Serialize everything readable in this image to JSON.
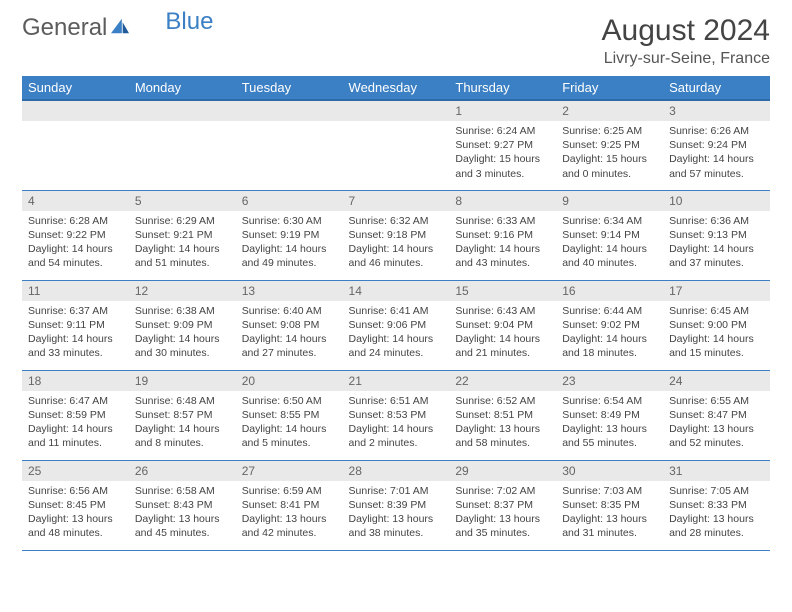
{
  "logo": {
    "text1": "General",
    "text2": "Blue"
  },
  "title": {
    "month": "August 2024",
    "location": "Livry-sur-Seine, France"
  },
  "theme": {
    "header_bg": "#3b7fc4",
    "header_text": "#ffffff",
    "daynum_bg": "#e9e9e9",
    "daynum_text": "#666666",
    "body_text": "#444444",
    "row_border": "#3b7fc4",
    "page_bg": "#ffffff"
  },
  "day_headers": [
    "Sunday",
    "Monday",
    "Tuesday",
    "Wednesday",
    "Thursday",
    "Friday",
    "Saturday"
  ],
  "weeks": [
    [
      null,
      null,
      null,
      null,
      {
        "n": "1",
        "sunrise": "Sunrise: 6:24 AM",
        "sunset": "Sunset: 9:27 PM",
        "daylight": "Daylight: 15 hours and 3 minutes."
      },
      {
        "n": "2",
        "sunrise": "Sunrise: 6:25 AM",
        "sunset": "Sunset: 9:25 PM",
        "daylight": "Daylight: 15 hours and 0 minutes."
      },
      {
        "n": "3",
        "sunrise": "Sunrise: 6:26 AM",
        "sunset": "Sunset: 9:24 PM",
        "daylight": "Daylight: 14 hours and 57 minutes."
      }
    ],
    [
      {
        "n": "4",
        "sunrise": "Sunrise: 6:28 AM",
        "sunset": "Sunset: 9:22 PM",
        "daylight": "Daylight: 14 hours and 54 minutes."
      },
      {
        "n": "5",
        "sunrise": "Sunrise: 6:29 AM",
        "sunset": "Sunset: 9:21 PM",
        "daylight": "Daylight: 14 hours and 51 minutes."
      },
      {
        "n": "6",
        "sunrise": "Sunrise: 6:30 AM",
        "sunset": "Sunset: 9:19 PM",
        "daylight": "Daylight: 14 hours and 49 minutes."
      },
      {
        "n": "7",
        "sunrise": "Sunrise: 6:32 AM",
        "sunset": "Sunset: 9:18 PM",
        "daylight": "Daylight: 14 hours and 46 minutes."
      },
      {
        "n": "8",
        "sunrise": "Sunrise: 6:33 AM",
        "sunset": "Sunset: 9:16 PM",
        "daylight": "Daylight: 14 hours and 43 minutes."
      },
      {
        "n": "9",
        "sunrise": "Sunrise: 6:34 AM",
        "sunset": "Sunset: 9:14 PM",
        "daylight": "Daylight: 14 hours and 40 minutes."
      },
      {
        "n": "10",
        "sunrise": "Sunrise: 6:36 AM",
        "sunset": "Sunset: 9:13 PM",
        "daylight": "Daylight: 14 hours and 37 minutes."
      }
    ],
    [
      {
        "n": "11",
        "sunrise": "Sunrise: 6:37 AM",
        "sunset": "Sunset: 9:11 PM",
        "daylight": "Daylight: 14 hours and 33 minutes."
      },
      {
        "n": "12",
        "sunrise": "Sunrise: 6:38 AM",
        "sunset": "Sunset: 9:09 PM",
        "daylight": "Daylight: 14 hours and 30 minutes."
      },
      {
        "n": "13",
        "sunrise": "Sunrise: 6:40 AM",
        "sunset": "Sunset: 9:08 PM",
        "daylight": "Daylight: 14 hours and 27 minutes."
      },
      {
        "n": "14",
        "sunrise": "Sunrise: 6:41 AM",
        "sunset": "Sunset: 9:06 PM",
        "daylight": "Daylight: 14 hours and 24 minutes."
      },
      {
        "n": "15",
        "sunrise": "Sunrise: 6:43 AM",
        "sunset": "Sunset: 9:04 PM",
        "daylight": "Daylight: 14 hours and 21 minutes."
      },
      {
        "n": "16",
        "sunrise": "Sunrise: 6:44 AM",
        "sunset": "Sunset: 9:02 PM",
        "daylight": "Daylight: 14 hours and 18 minutes."
      },
      {
        "n": "17",
        "sunrise": "Sunrise: 6:45 AM",
        "sunset": "Sunset: 9:00 PM",
        "daylight": "Daylight: 14 hours and 15 minutes."
      }
    ],
    [
      {
        "n": "18",
        "sunrise": "Sunrise: 6:47 AM",
        "sunset": "Sunset: 8:59 PM",
        "daylight": "Daylight: 14 hours and 11 minutes."
      },
      {
        "n": "19",
        "sunrise": "Sunrise: 6:48 AM",
        "sunset": "Sunset: 8:57 PM",
        "daylight": "Daylight: 14 hours and 8 minutes."
      },
      {
        "n": "20",
        "sunrise": "Sunrise: 6:50 AM",
        "sunset": "Sunset: 8:55 PM",
        "daylight": "Daylight: 14 hours and 5 minutes."
      },
      {
        "n": "21",
        "sunrise": "Sunrise: 6:51 AM",
        "sunset": "Sunset: 8:53 PM",
        "daylight": "Daylight: 14 hours and 2 minutes."
      },
      {
        "n": "22",
        "sunrise": "Sunrise: 6:52 AM",
        "sunset": "Sunset: 8:51 PM",
        "daylight": "Daylight: 13 hours and 58 minutes."
      },
      {
        "n": "23",
        "sunrise": "Sunrise: 6:54 AM",
        "sunset": "Sunset: 8:49 PM",
        "daylight": "Daylight: 13 hours and 55 minutes."
      },
      {
        "n": "24",
        "sunrise": "Sunrise: 6:55 AM",
        "sunset": "Sunset: 8:47 PM",
        "daylight": "Daylight: 13 hours and 52 minutes."
      }
    ],
    [
      {
        "n": "25",
        "sunrise": "Sunrise: 6:56 AM",
        "sunset": "Sunset: 8:45 PM",
        "daylight": "Daylight: 13 hours and 48 minutes."
      },
      {
        "n": "26",
        "sunrise": "Sunrise: 6:58 AM",
        "sunset": "Sunset: 8:43 PM",
        "daylight": "Daylight: 13 hours and 45 minutes."
      },
      {
        "n": "27",
        "sunrise": "Sunrise: 6:59 AM",
        "sunset": "Sunset: 8:41 PM",
        "daylight": "Daylight: 13 hours and 42 minutes."
      },
      {
        "n": "28",
        "sunrise": "Sunrise: 7:01 AM",
        "sunset": "Sunset: 8:39 PM",
        "daylight": "Daylight: 13 hours and 38 minutes."
      },
      {
        "n": "29",
        "sunrise": "Sunrise: 7:02 AM",
        "sunset": "Sunset: 8:37 PM",
        "daylight": "Daylight: 13 hours and 35 minutes."
      },
      {
        "n": "30",
        "sunrise": "Sunrise: 7:03 AM",
        "sunset": "Sunset: 8:35 PM",
        "daylight": "Daylight: 13 hours and 31 minutes."
      },
      {
        "n": "31",
        "sunrise": "Sunrise: 7:05 AM",
        "sunset": "Sunset: 8:33 PM",
        "daylight": "Daylight: 13 hours and 28 minutes."
      }
    ]
  ]
}
